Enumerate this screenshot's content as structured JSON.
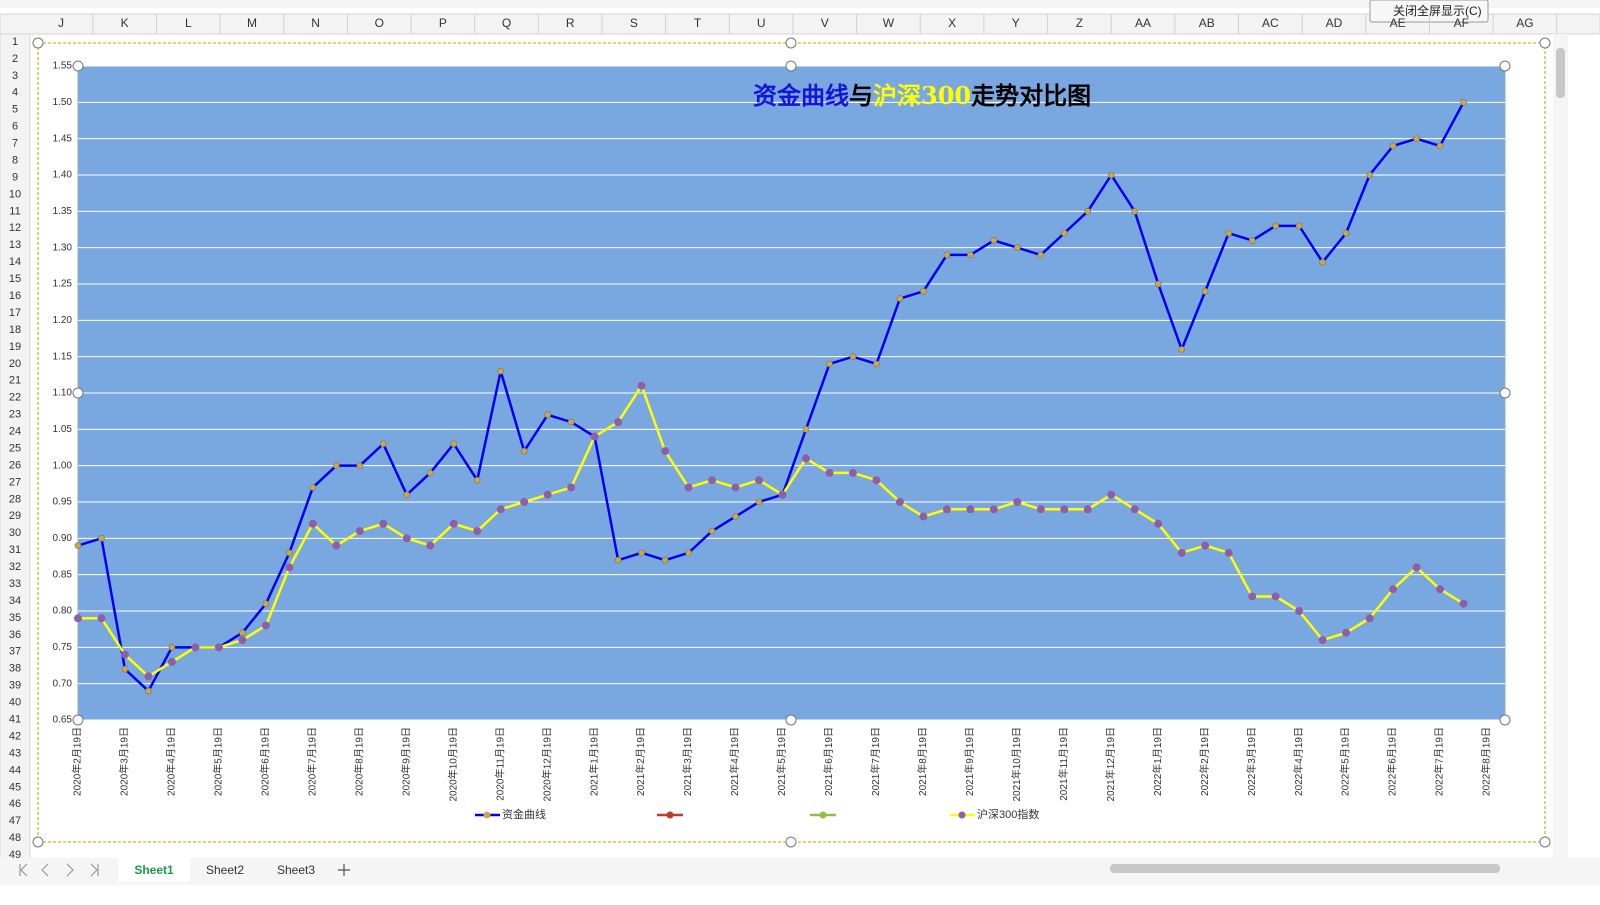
{
  "sheet": {
    "columns": [
      "J",
      "K",
      "L",
      "M",
      "N",
      "O",
      "P",
      "Q",
      "R",
      "S",
      "T",
      "U",
      "V",
      "W",
      "X",
      "Y",
      "Z",
      "AA",
      "AB",
      "AC",
      "AD",
      "AE",
      "AF",
      "AG"
    ],
    "rows": [
      1,
      2,
      3,
      4,
      5,
      6,
      7,
      8,
      9,
      10,
      11,
      12,
      13,
      14,
      15,
      16,
      17,
      18,
      19,
      20,
      21,
      22,
      23,
      24,
      25,
      26,
      27,
      28,
      29,
      30,
      31,
      32,
      33,
      34,
      35,
      36,
      37,
      38,
      39,
      40,
      41,
      42,
      43,
      44,
      45,
      46,
      47,
      48,
      49
    ],
    "tabs": [
      "Sheet1",
      "Sheet2",
      "Sheet3"
    ],
    "button": "关闭全屏显示(C)"
  },
  "chart_data": {
    "type": "line",
    "title_parts": [
      {
        "text": "资金曲线",
        "color": "#1515d8"
      },
      {
        "text": "与",
        "color": "#000000"
      },
      {
        "text": "沪深300",
        "color": "#ffff00"
      },
      {
        "text": "走势对比图",
        "color": "#000000"
      }
    ],
    "categories": [
      "2020年2月19日",
      null,
      "2020年3月19日",
      null,
      "2020年4月19日",
      null,
      "2020年5月19日",
      null,
      "2020年6月19日",
      null,
      "2020年7月19日",
      null,
      "2020年8月19日",
      null,
      "2020年9月19日",
      null,
      "2020年10月19日",
      null,
      "2020年11月19日",
      null,
      "2020年12月19日",
      null,
      "2021年1月19日",
      null,
      "2021年2月19日",
      null,
      "2021年3月19日",
      null,
      "2021年4月19日",
      null,
      "2021年5月19日",
      null,
      "2021年6月19日",
      null,
      "2021年7月19日",
      null,
      "2021年8月19日",
      null,
      "2021年9月19日",
      null,
      "2021年10月19日",
      null,
      "2021年11月19日",
      null,
      "2021年12月19日",
      null,
      "2022年1月19日",
      null,
      "2022年2月19日",
      null,
      "2022年3月19日",
      null,
      "2022年4月19日",
      null,
      "2022年5月19日",
      null,
      "2022年6月19日",
      null,
      "2022年7月19日",
      null,
      "2022年8月19日"
    ],
    "series": [
      {
        "name": "资金曲线",
        "color": "#0000ee",
        "marker_color": "#c9a94e",
        "values": [
          0.89,
          0.9,
          0.72,
          0.69,
          0.75,
          0.75,
          0.75,
          0.77,
          0.81,
          0.88,
          0.97,
          1.0,
          1.0,
          1.03,
          0.96,
          0.99,
          1.03,
          0.98,
          1.13,
          1.02,
          1.07,
          1.06,
          1.04,
          0.87,
          0.88,
          0.87,
          0.88,
          0.91,
          0.93,
          0.95,
          0.96,
          1.05,
          1.14,
          1.15,
          1.14,
          1.23,
          1.24,
          1.29,
          1.29,
          1.31,
          1.3,
          1.29,
          1.32,
          1.35,
          1.4,
          1.35,
          1.25,
          1.16,
          1.24,
          1.32,
          1.31,
          1.33,
          1.33,
          1.28,
          1.32,
          1.4,
          1.44,
          1.45,
          1.44,
          1.5,
          null
        ]
      },
      {
        "name": "沪深300指数",
        "color": "#ffff00",
        "marker_color": "#8e5fa8",
        "values": [
          0.79,
          0.79,
          0.74,
          0.71,
          0.73,
          0.75,
          0.75,
          0.76,
          0.78,
          0.86,
          0.92,
          0.89,
          0.91,
          0.92,
          0.9,
          0.89,
          0.92,
          0.91,
          0.94,
          0.95,
          0.96,
          0.97,
          1.04,
          1.06,
          1.11,
          1.02,
          0.97,
          0.98,
          0.97,
          0.98,
          0.96,
          1.01,
          0.99,
          0.99,
          0.98,
          0.95,
          0.93,
          0.94,
          0.94,
          0.94,
          0.95,
          0.94,
          0.94,
          0.94,
          0.96,
          0.94,
          0.92,
          0.88,
          0.89,
          0.88,
          0.82,
          0.82,
          0.8,
          0.76,
          0.77,
          0.79,
          0.83,
          0.86,
          0.83,
          0.81,
          null
        ]
      }
    ],
    "ylim": [
      0.65,
      1.55
    ],
    "yticks": [
      0.65,
      {
        "value": 0.7,
        "label": "0.70"
      },
      0.75,
      {
        "value": 0.8,
        "label": "0.80"
      },
      0.85,
      {
        "value": 0.9,
        "label": "0.90"
      },
      0.95,
      {
        "value": 1,
        "label": "1.00"
      },
      1.05,
      {
        "value": 1.1,
        "label": "1.10"
      },
      1.15,
      {
        "value": 1.2,
        "label": "1.20"
      },
      1.25,
      {
        "value": 1.3,
        "label": "1.30"
      },
      1.35,
      {
        "value": 1.4,
        "label": "1.40"
      },
      1.45,
      {
        "value": 1.5,
        "label": "1.50"
      },
      1.55
    ],
    "grid": true,
    "plot_color": "#79a8e0",
    "legend": "bottom"
  }
}
